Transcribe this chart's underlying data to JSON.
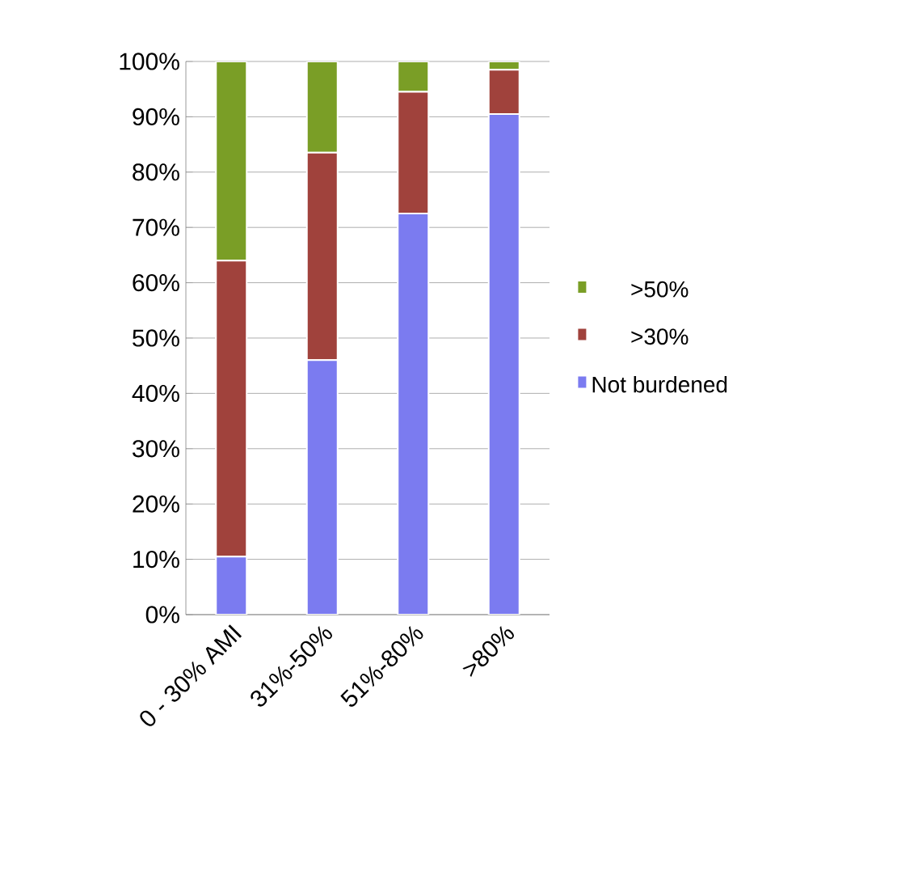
{
  "chart_data": {
    "type": "bar",
    "stacked": true,
    "categories": [
      "0 - 30% AMI",
      "31%-50%",
      "51%-80%",
      ">80%"
    ],
    "series": [
      {
        "name": "Not burdened",
        "color": "#7b7bf0",
        "values": [
          10.5,
          46,
          72.5,
          90.5
        ]
      },
      {
        "name": ">30%",
        "color": "#a0423c",
        "values": [
          53.5,
          37.5,
          22,
          8
        ]
      },
      {
        "name": ">50%",
        "color": "#7a9e26",
        "values": [
          36,
          16.5,
          5.5,
          1.5
        ]
      }
    ],
    "ylim": [
      0,
      100
    ],
    "yticks": [
      {
        "value": 0,
        "label": "0%"
      },
      {
        "value": 10,
        "label": "10%"
      },
      {
        "value": 20,
        "label": "20%"
      },
      {
        "value": 30,
        "label": "30%"
      },
      {
        "value": 40,
        "label": "40%"
      },
      {
        "value": 50,
        "label": "50%"
      },
      {
        "value": 60,
        "label": "60%"
      },
      {
        "value": 70,
        "label": "70%"
      },
      {
        "value": 80,
        "label": "80%"
      },
      {
        "value": 90,
        "label": "90%"
      },
      {
        "value": 100,
        "label": "100%"
      }
    ],
    "grid": "y",
    "legend": "right"
  }
}
